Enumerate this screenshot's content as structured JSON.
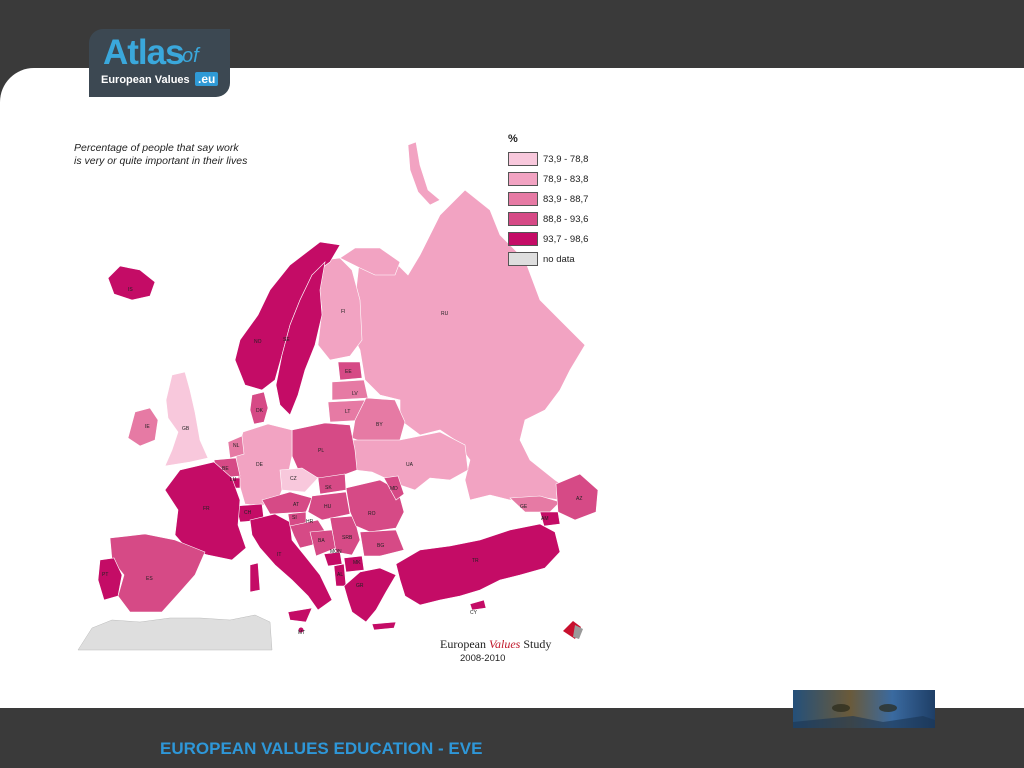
{
  "logo": {
    "atlas": "Atlas",
    "of": "of",
    "subtitle": "European Values",
    "domain": ".eu"
  },
  "map": {
    "title_line1": "Percentage of people that say work",
    "title_line2": "is very or quite important in their lives",
    "legend": {
      "header": "%",
      "items": [
        {
          "label": "73,9 - 78,8",
          "color": "#f8c8dc"
        },
        {
          "label": "78,9 - 83,8",
          "color": "#f2a3c2"
        },
        {
          "label": "83,9 - 88,7",
          "color": "#e67aa4"
        },
        {
          "label": "88,8 - 93,6",
          "color": "#d64a86"
        },
        {
          "label": "93,7 - 98,6",
          "color": "#c40c66"
        },
        {
          "label": "no data",
          "color": "#dedede"
        }
      ]
    },
    "country_labels": {
      "IS": "IS",
      "NO": "NO",
      "SE": "SE",
      "FI": "FI",
      "RU": "RU",
      "EE": "EE",
      "LV": "LV",
      "LT": "LT",
      "BY": "BY",
      "UA": "UA",
      "PL": "PL",
      "DE": "DE",
      "CZ": "CZ",
      "SK": "SK",
      "HU": "HU",
      "AT": "AT",
      "CH": "CH",
      "FR": "FR",
      "BE": "BE",
      "LU": "LU",
      "NL": "NL",
      "DK": "DK",
      "GB": "GB",
      "IE": "IE",
      "ES": "ES",
      "PT": "PT",
      "IT": "IT",
      "RO": "RO",
      "MD": "MD",
      "BG": "BG",
      "GR": "GR",
      "TR": "TR",
      "GE": "GE",
      "AZ": "AZ",
      "AM": "AM",
      "HR": "HR",
      "BA": "BA",
      "SRB": "SRB",
      "MON": "MON",
      "MK": "MK",
      "SI": "SI",
      "AL": "AL",
      "MT": "MT",
      "CY": "CY"
    },
    "source_name_part1": "European",
    "source_name_part2": "Values",
    "source_name_part3": "Study",
    "source_years": "2008-2010"
  },
  "footer": {
    "title": "EUROPEAN VALUES EDUCATION - EVE"
  }
}
